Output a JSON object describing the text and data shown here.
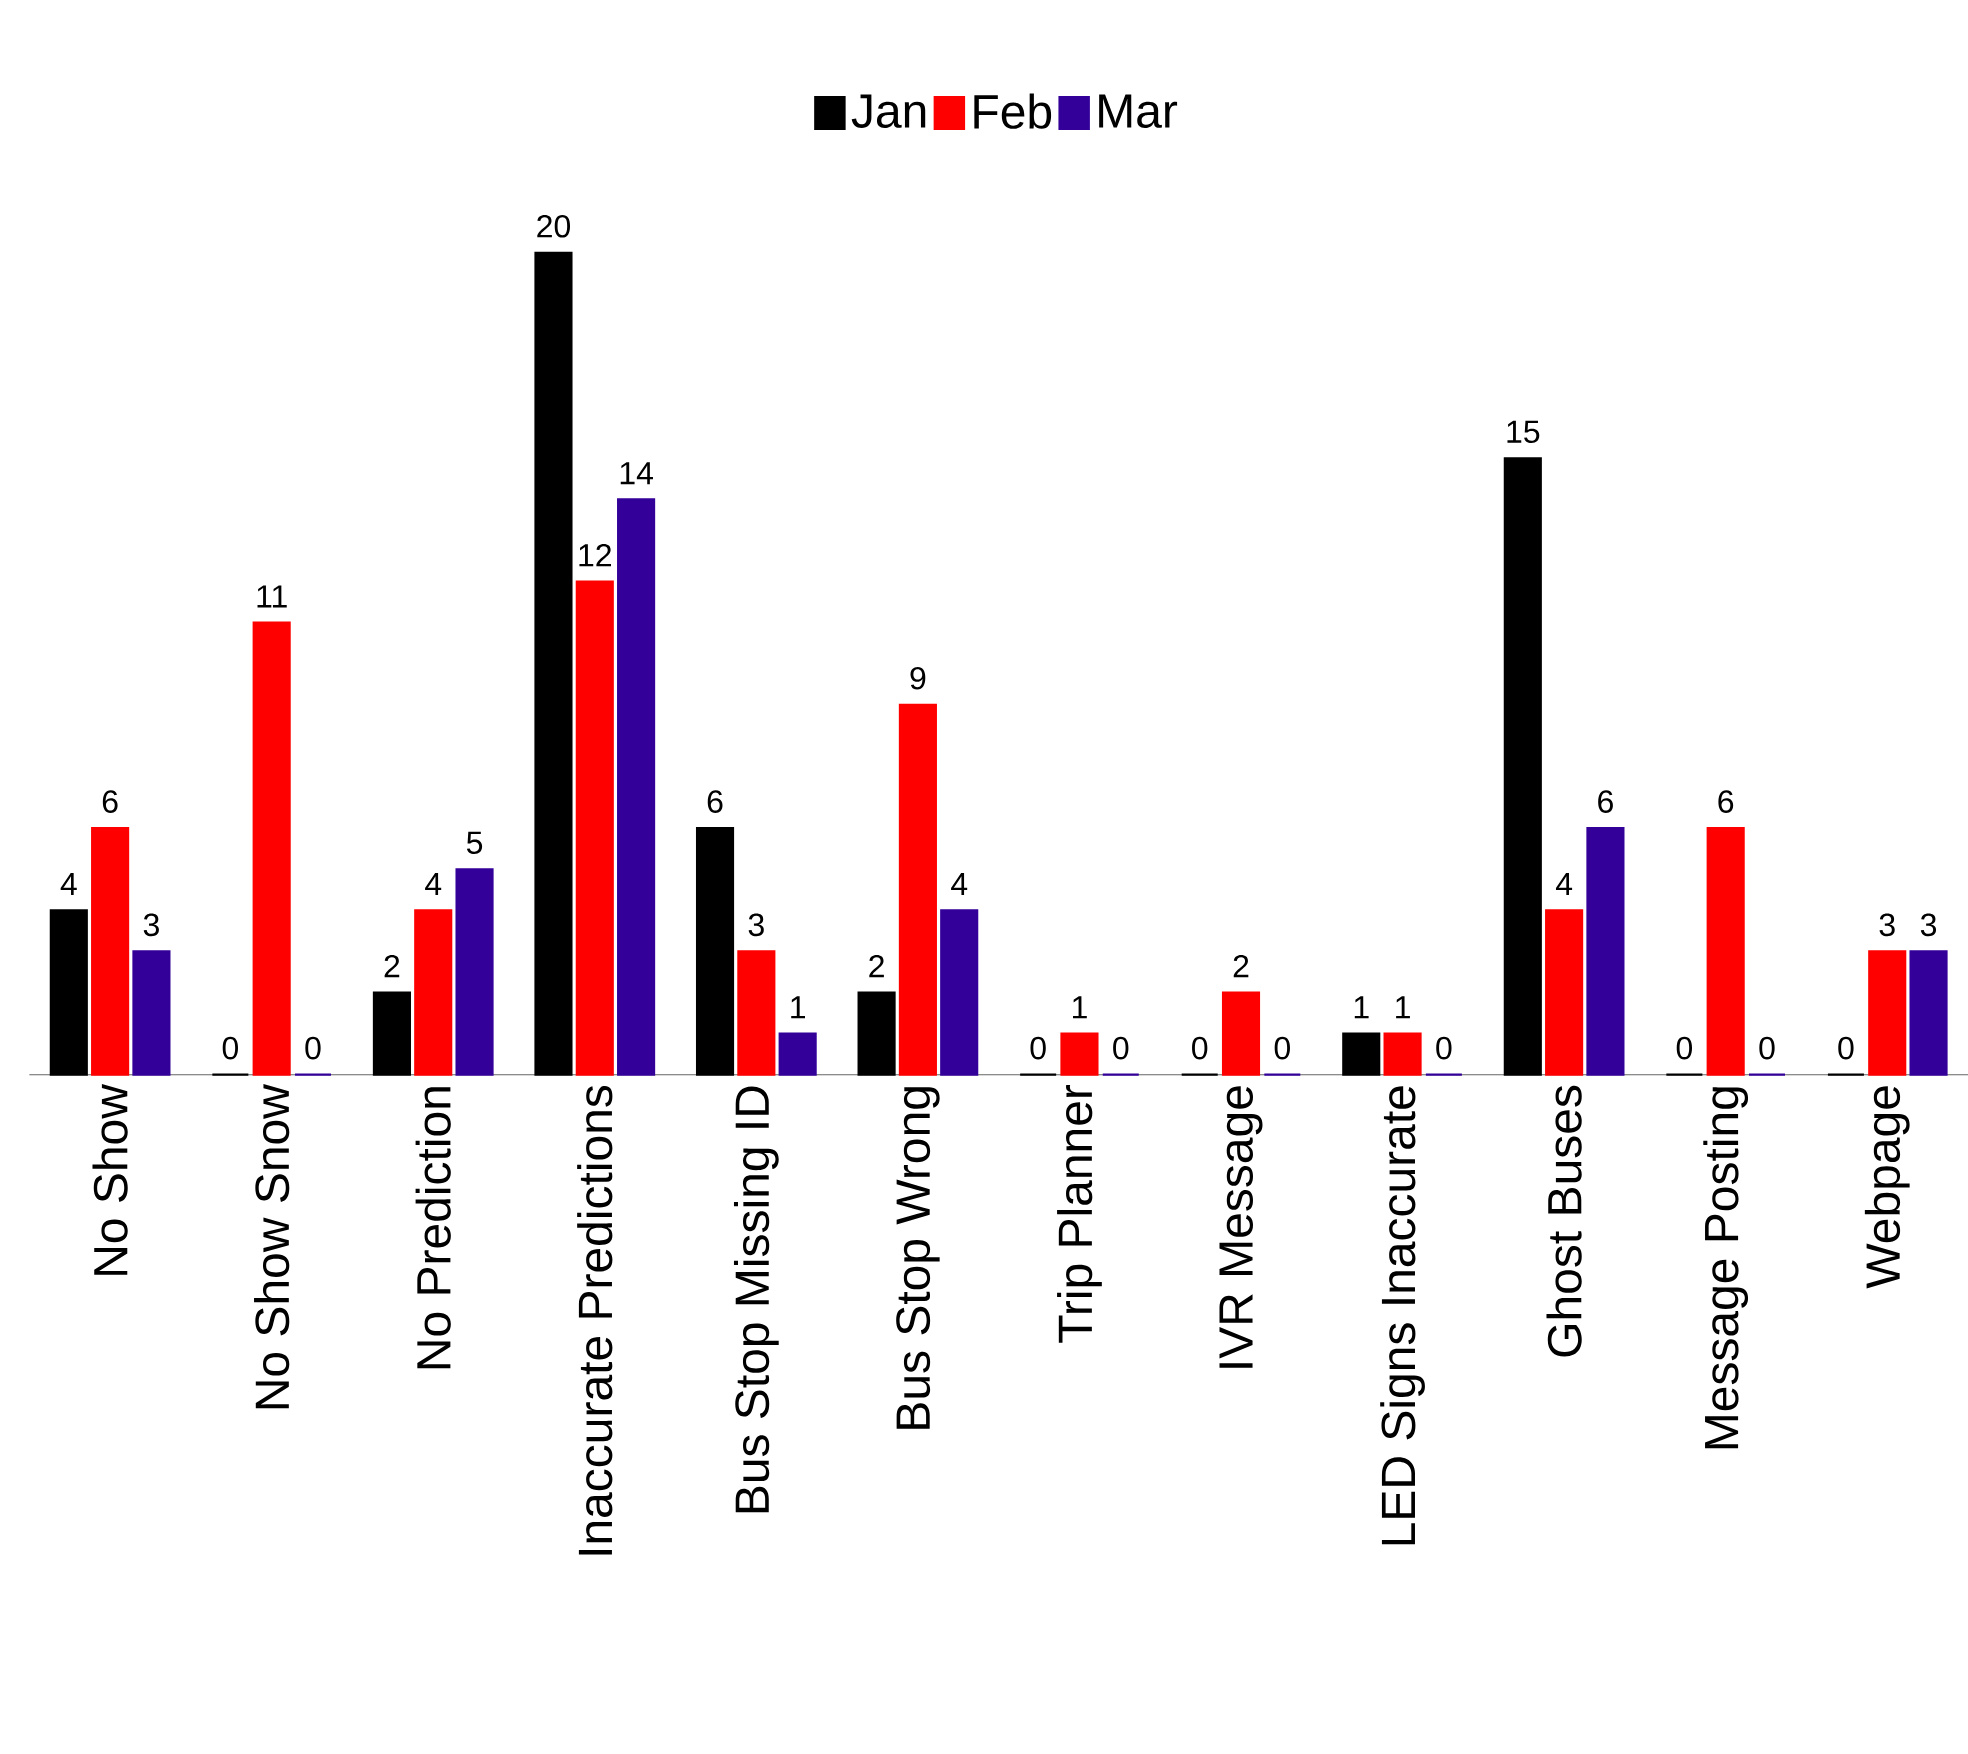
{
  "chart_data": {
    "type": "bar",
    "categories": [
      "No Show",
      "No Show Snow",
      "No Prediction",
      "Inaccurate Predictions",
      "Bus Stop Missing ID",
      "Bus Stop Wrong",
      "Trip Planner",
      "IVR Message",
      "LED Signs Inaccurate",
      "Ghost Buses",
      "Message Posting",
      "Webpage"
    ],
    "series": [
      {
        "name": "Jan",
        "color": "#000000",
        "values": [
          4,
          0,
          2,
          20,
          6,
          2,
          0,
          0,
          1,
          15,
          0,
          0
        ]
      },
      {
        "name": "Feb",
        "color": "#ff0000",
        "values": [
          6,
          11,
          4,
          12,
          3,
          9,
          1,
          2,
          1,
          4,
          6,
          3
        ]
      },
      {
        "name": "Mar",
        "color": "#330099",
        "values": [
          3,
          0,
          5,
          14,
          1,
          4,
          0,
          0,
          0,
          6,
          0,
          3
        ]
      }
    ],
    "data_labels": true,
    "legend": "top",
    "tick_labels": "x"
  }
}
